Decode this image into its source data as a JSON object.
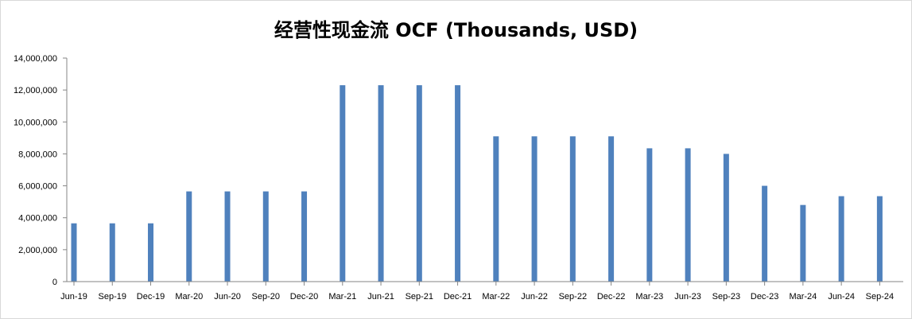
{
  "chart_data": {
    "type": "bar",
    "title": "经营性现金流 OCF (Thousands, USD)",
    "xlabel": "",
    "ylabel": "",
    "ylim": [
      0,
      14000000
    ],
    "yticks": [
      0,
      2000000,
      4000000,
      6000000,
      8000000,
      10000000,
      12000000,
      14000000
    ],
    "ytick_labels": [
      "0",
      "2,000,000",
      "4,000,000",
      "6,000,000",
      "8,000,000",
      "10,000,000",
      "12,000,000",
      "14,000,000"
    ],
    "grid": false,
    "legend": "none",
    "bar_color": "#4f81bd",
    "categories": [
      "Jun-19",
      "Sep-19",
      "Dec-19",
      "Mar-20",
      "Jun-20",
      "Sep-20",
      "Dec-20",
      "Mar-21",
      "Jun-21",
      "Sep-21",
      "Dec-21",
      "Mar-22",
      "Jun-22",
      "Sep-22",
      "Dec-22",
      "Mar-23",
      "Jun-23",
      "Sep-23",
      "Dec-23",
      "Mar-24",
      "Jun-24",
      "Sep-24"
    ],
    "values": [
      3650000,
      3650000,
      3650000,
      5650000,
      5650000,
      5650000,
      5650000,
      12300000,
      12300000,
      12300000,
      12300000,
      9100000,
      9100000,
      9100000,
      9100000,
      8350000,
      8350000,
      8000000,
      6000000,
      4800000,
      5350000,
      5350000
    ]
  }
}
